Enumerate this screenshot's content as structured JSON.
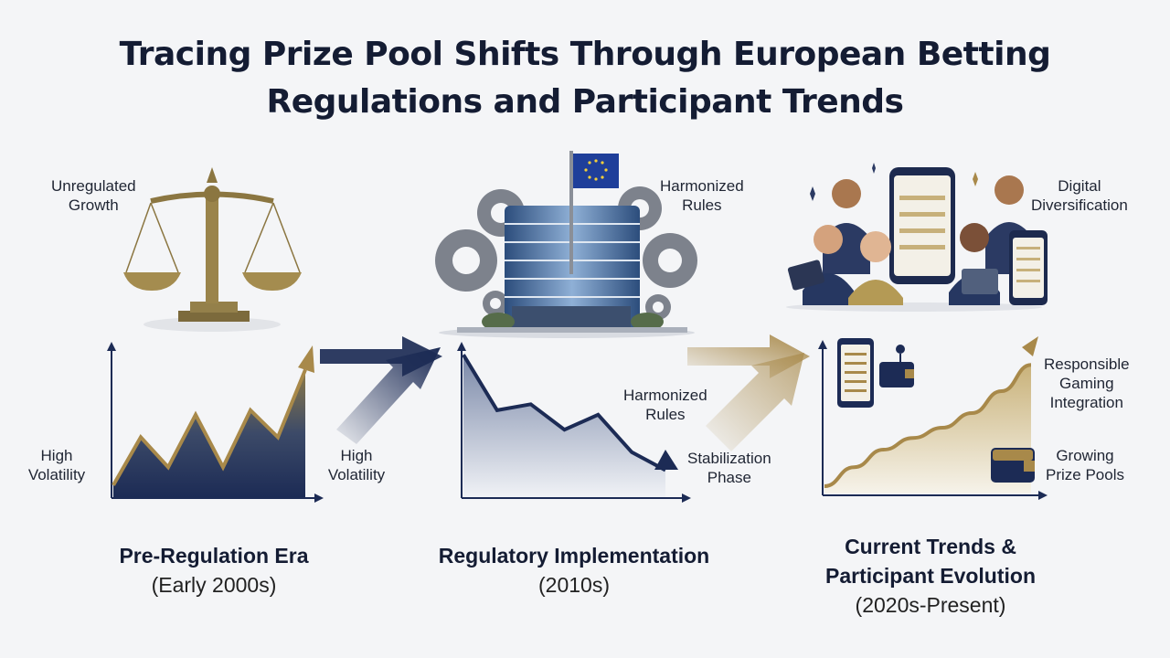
{
  "title": {
    "line1": "Tracing Prize Pool Shifts Through European Betting",
    "line2": "Regulations and Participant Trends"
  },
  "panels": [
    {
      "icon_label": [
        "Unregulated",
        "Growth"
      ],
      "side_label": [
        "High",
        "Volatility"
      ],
      "right_label": [
        "High",
        "Volatility"
      ],
      "era_name": "Pre-Regulation Era",
      "era_period": "(Early 2000s)"
    },
    {
      "icon_label": [
        "Harmonized",
        "Rules"
      ],
      "mid_label": [
        "Harmonized",
        "Rules"
      ],
      "end_label": [
        "Stabilization",
        "Phase"
      ],
      "era_name": "Regulatory Implementation",
      "era_period": "(2010s)"
    },
    {
      "icon_label": [
        "Digital",
        "Diversification"
      ],
      "top_label": [
        "Responsible",
        "Gaming",
        "Integration"
      ],
      "bottom_label": [
        "Growing",
        "Prize Pools"
      ],
      "era_name_lines": [
        "Current Trends &",
        "Participant Evolution"
      ],
      "era_period": "(2020s-Present)"
    }
  ],
  "chart_data": [
    {
      "type": "area",
      "description_of_trend": "",
      "values": [
        0.08,
        0.4,
        0.2,
        0.55,
        0.2,
        0.58,
        0.4,
        0.85
      ]
    },
    {
      "type": "area",
      "values": [
        0.95,
        0.58,
        0.62,
        0.45,
        0.55,
        0.3,
        0.18
      ]
    },
    {
      "type": "area",
      "values": [
        0.05,
        0.18,
        0.3,
        0.38,
        0.45,
        0.55,
        0.7,
        0.88
      ]
    }
  ],
  "colors": {
    "navy": "#1c2b55",
    "gold": "#a8894a",
    "background": "#f4f5f7"
  },
  "icons": [
    "scales-icon",
    "eu-building-icon",
    "gear-icon",
    "eu-flag-icon",
    "people-group-icon",
    "smartphone-icon",
    "wallet-icon",
    "tablet-icon",
    "arrow-icon"
  ]
}
